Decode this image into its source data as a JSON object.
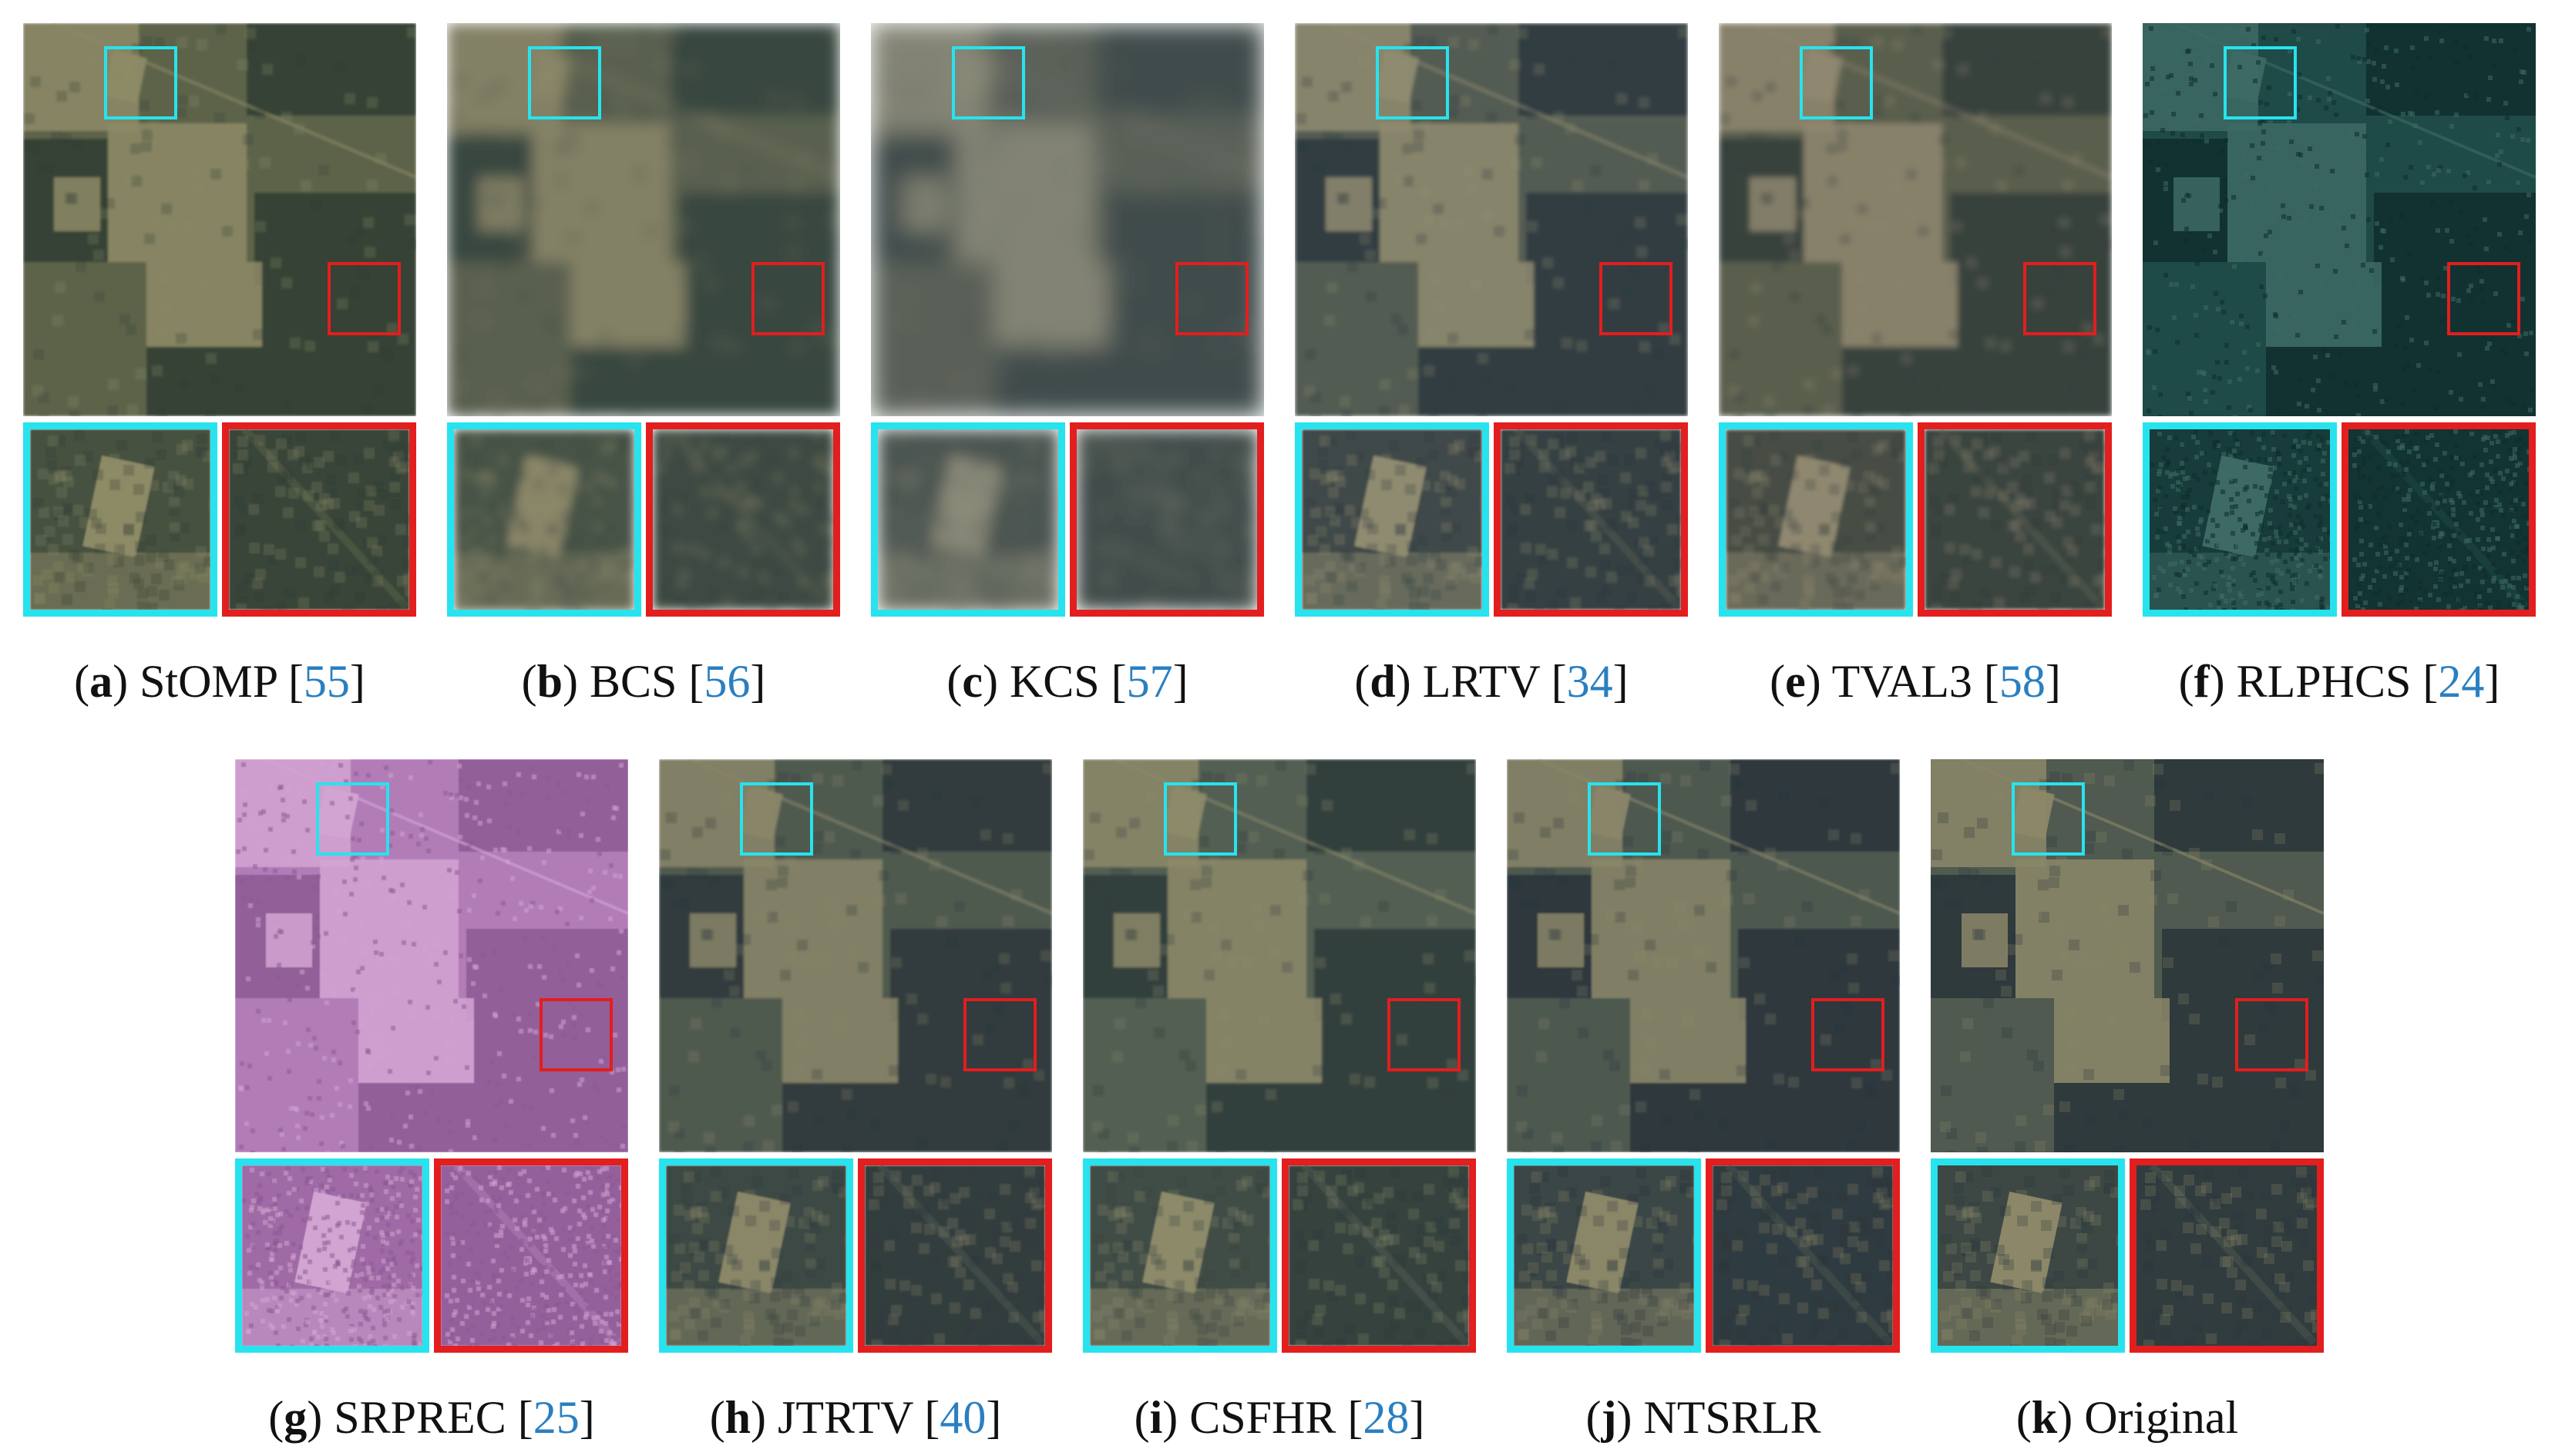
{
  "figure": {
    "panels": [
      {
        "letter": "a",
        "method": "StOMP",
        "ref": "55",
        "tone": "#5d644a",
        "dark": "#2f3d33",
        "light": "#8d8a66",
        "blur": 0.5,
        "noise": 0
      },
      {
        "letter": "b",
        "method": "BCS",
        "ref": "56",
        "tone": "#5a6250",
        "dark": "#34433e",
        "light": "#8a8668",
        "blur": 3,
        "noise": 0
      },
      {
        "letter": "c",
        "method": "KCS",
        "ref": "57",
        "tone": "#5b6258",
        "dark": "#3c4849",
        "light": "#8a8a78",
        "blur": 5,
        "noise": 0
      },
      {
        "letter": "d",
        "method": "LRTV",
        "ref": "34",
        "tone": "#545c52",
        "dark": "#2c3840",
        "light": "#8f8b70",
        "blur": 0.8,
        "noise": 0
      },
      {
        "letter": "e",
        "method": "TVAL3",
        "ref": "58",
        "tone": "#5a5f4e",
        "dark": "#323d3c",
        "light": "#8f8770",
        "blur": 1.2,
        "noise": 0
      },
      {
        "letter": "f",
        "method": "RLPHCS",
        "ref": "24",
        "tone": "#1f4a48",
        "dark": "#0f2e2e",
        "light": "#3d6a64",
        "blur": 0,
        "noise": 1
      },
      {
        "letter": "g",
        "method": "SRPREC",
        "ref": "25",
        "tone": "#b27cb7",
        "dark": "#8c5a94",
        "light": "#d2a4d2",
        "blur": 0.3,
        "noise": 1
      },
      {
        "letter": "h",
        "method": "JTRTV",
        "ref": "40",
        "tone": "#4f5a50",
        "dark": "#2a363a",
        "light": "#8a8668",
        "blur": 0.5,
        "noise": 0
      },
      {
        "letter": "i",
        "method": "CSFHR",
        "ref": "28",
        "tone": "#535e52",
        "dark": "#2e3b3a",
        "light": "#8d8a6a",
        "blur": 0.5,
        "noise": 0
      },
      {
        "letter": "j",
        "method": "NTSRLR",
        "ref": "",
        "tone": "#4e5850",
        "dark": "#28343b",
        "light": "#8a8668",
        "blur": 0.4,
        "noise": 0
      },
      {
        "letter": "k",
        "method": "Original",
        "ref": "",
        "tone": "#505b50",
        "dark": "#29353a",
        "light": "#8b8768",
        "blur": 0,
        "noise": 0
      }
    ]
  }
}
